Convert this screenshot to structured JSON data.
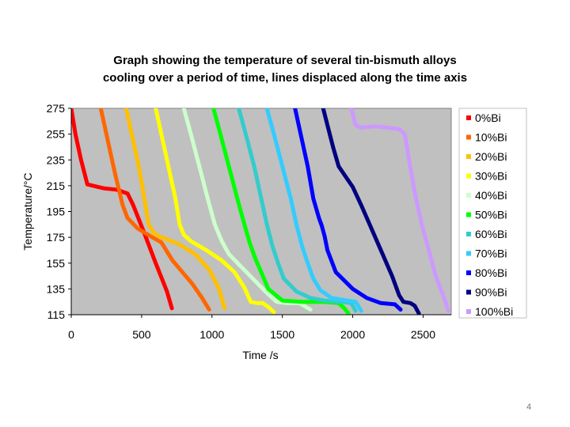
{
  "slide_number": "4",
  "chart_data": {
    "type": "line",
    "title_lines": [
      "Graph showing the temperature of several tin-bismuth alloys",
      "cooling over a period of time, lines displaced along the time axis"
    ],
    "xlabel": "Time /s",
    "ylabel": "Temperature/°C",
    "xlim": [
      0,
      2700
    ],
    "ylim": [
      115,
      275
    ],
    "x_ticks": [
      0,
      500,
      1000,
      1500,
      2000,
      2500
    ],
    "y_ticks": [
      115,
      135,
      155,
      175,
      195,
      215,
      235,
      255,
      275
    ],
    "grid": false,
    "plot_background": "#c0c0c0",
    "legend_position": "right",
    "series": [
      {
        "name": "0%Bi",
        "color": "#ff0000",
        "x": [
          0,
          30,
          70,
          115,
          230,
          320,
          400,
          440,
          520,
          600,
          680,
          715
        ],
        "y": [
          275,
          255,
          235,
          216,
          213,
          212,
          209,
          200,
          178,
          155,
          133,
          120
        ]
      },
      {
        "name": "10%Bi",
        "color": "#ff6600",
        "x": [
          210,
          250,
          310,
          365,
          400,
          470,
          560,
          640,
          720,
          790,
          860,
          930,
          980
        ],
        "y": [
          275,
          255,
          225,
          200,
          190,
          182,
          176,
          171,
          157,
          148,
          139,
          128,
          119
        ]
      },
      {
        "name": "20%Bi",
        "color": "#ffc000",
        "x": [
          390,
          430,
          480,
          520,
          550,
          590,
          640,
          760,
          880,
          980,
          1050,
          1090
        ],
        "y": [
          275,
          255,
          230,
          205,
          185,
          178,
          175,
          170,
          162,
          150,
          135,
          120
        ]
      },
      {
        "name": "30%Bi",
        "color": "#ffff00",
        "x": [
          600,
          640,
          690,
          740,
          770,
          800,
          850,
          960,
          1070,
          1160,
          1230,
          1275,
          1320,
          1360,
          1400,
          1440
        ],
        "y": [
          275,
          255,
          230,
          205,
          185,
          177,
          172,
          165,
          157,
          148,
          136,
          125,
          124,
          124,
          121,
          117
        ]
      },
      {
        "name": "40%Bi",
        "color": "#ccffcc",
        "x": [
          800,
          850,
          910,
          970,
          1020,
          1070,
          1120,
          1200,
          1290,
          1380,
          1460,
          1530,
          1620,
          1700
        ],
        "y": [
          275,
          255,
          230,
          205,
          185,
          172,
          162,
          153,
          143,
          133,
          125,
          124,
          124,
          119
        ]
      },
      {
        "name": "50%Bi",
        "color": "#00ff00",
        "x": [
          1010,
          1060,
          1120,
          1180,
          1230,
          1270,
          1310,
          1350,
          1400,
          1500,
          1640,
          1800,
          1900,
          1940,
          1970
        ],
        "y": [
          275,
          255,
          230,
          205,
          185,
          170,
          158,
          148,
          135,
          126,
          125,
          125,
          124,
          120,
          116
        ]
      },
      {
        "name": "60%Bi",
        "color": "#33cccc",
        "x": [
          1190,
          1240,
          1300,
          1350,
          1390,
          1430,
          1470,
          1510,
          1600,
          1700,
          1800,
          1920,
          1990,
          2020
        ],
        "y": [
          275,
          255,
          230,
          205,
          185,
          168,
          155,
          143,
          133,
          128,
          126,
          125,
          124,
          118
        ]
      },
      {
        "name": "70%Bi",
        "color": "#33ccff",
        "x": [
          1390,
          1440,
          1500,
          1560,
          1600,
          1640,
          1680,
          1720,
          1770,
          1850,
          1960,
          2020,
          2060
        ],
        "y": [
          275,
          255,
          230,
          205,
          185,
          168,
          155,
          143,
          134,
          128,
          126,
          125,
          118
        ]
      },
      {
        "name": "80%Bi",
        "color": "#0000ff",
        "x": [
          1590,
          1630,
          1680,
          1720,
          1760,
          1780,
          1800,
          1820,
          1880,
          2000,
          2100,
          2200,
          2300,
          2340
        ],
        "y": [
          275,
          255,
          230,
          205,
          190,
          184,
          176,
          165,
          148,
          135,
          128,
          124,
          123,
          119
        ]
      },
      {
        "name": "90%Bi",
        "color": "#000080",
        "x": [
          1790,
          1820,
          1860,
          1900,
          1950,
          2000,
          2060,
          2120,
          2200,
          2280,
          2330,
          2360,
          2410,
          2440,
          2470
        ],
        "y": [
          275,
          262,
          245,
          230,
          222,
          214,
          200,
          185,
          165,
          145,
          130,
          125,
          124,
          122,
          116
        ]
      },
      {
        "name": "100%Bi",
        "color": "#cc99ff",
        "x": [
          1990,
          2020,
          2060,
          2150,
          2250,
          2330,
          2370,
          2400,
          2440,
          2490,
          2540,
          2590,
          2650,
          2680
        ],
        "y": [
          275,
          262,
          260,
          261,
          260,
          259,
          255,
          235,
          210,
          185,
          165,
          145,
          128,
          118
        ]
      }
    ]
  }
}
